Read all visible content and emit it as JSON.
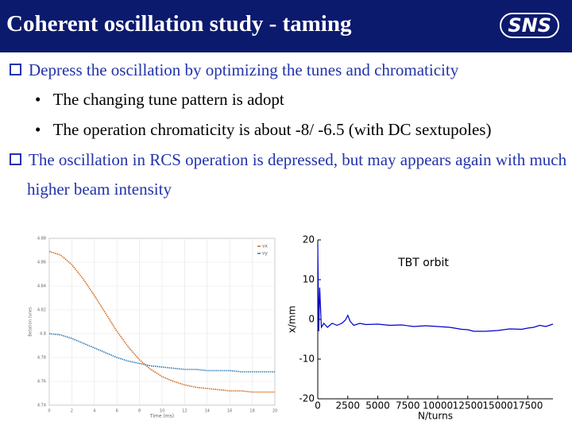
{
  "header": {
    "title": "Coherent oscillation study - taming",
    "logo": "SNS"
  },
  "bullets": [
    {
      "text": "Depress the oscillation by optimizing the tunes and chromaticity",
      "sub": [
        "The changing tune pattern is adopt",
        "The operation chromaticity is about -8/ -6.5 (with DC sextupoles)"
      ]
    },
    {
      "text": "The oscillation in RCS operation is depressed, but may appears again with much higher beam intensity",
      "sub": []
    }
  ],
  "chart_data": [
    {
      "type": "line",
      "xlabel": "Time (ms)",
      "ylabel": "Betatron tunes",
      "x": [
        0,
        1,
        2,
        3,
        4,
        5,
        6,
        7,
        8,
        9,
        10,
        11,
        12,
        13,
        14,
        15,
        16,
        17,
        18,
        19,
        20
      ],
      "series": [
        {
          "name": "νx",
          "color": "#d2691e",
          "values": [
            4.869,
            4.866,
            4.858,
            4.846,
            4.832,
            4.817,
            4.802,
            4.789,
            4.778,
            4.77,
            4.764,
            4.76,
            4.757,
            4.755,
            4.754,
            4.753,
            4.752,
            4.752,
            4.751,
            4.751,
            4.751
          ]
        },
        {
          "name": "νy",
          "color": "#2a7ab0",
          "values": [
            4.8,
            4.799,
            4.796,
            4.792,
            4.788,
            4.784,
            4.78,
            4.777,
            4.775,
            4.773,
            4.772,
            4.771,
            4.77,
            4.77,
            4.769,
            4.769,
            4.769,
            4.768,
            4.768,
            4.768,
            4.768
          ]
        }
      ],
      "xlim": [
        0,
        20
      ],
      "xticks": [
        0,
        2,
        4,
        6,
        8,
        10,
        12,
        14,
        16,
        18,
        20
      ],
      "ylim": [
        4.74,
        4.88
      ],
      "yticks": [
        4.74,
        4.76,
        4.78,
        4.8,
        4.82,
        4.84,
        4.86,
        4.88
      ],
      "grid": true,
      "legend": "upper right"
    },
    {
      "type": "line",
      "annotation": "TBT orbit",
      "xlabel": "N/turns",
      "ylabel": "x/mm",
      "x": [
        0,
        80,
        160,
        300,
        500,
        800,
        1200,
        1600,
        2000,
        2300,
        2500,
        2700,
        3000,
        3500,
        4000,
        5000,
        6000,
        7000,
        8000,
        9000,
        10000,
        11000,
        12000,
        12500,
        13000,
        14000,
        15000,
        16000,
        17000,
        17500,
        18000,
        18500,
        19000,
        19600
      ],
      "series": [
        {
          "name": "orbit",
          "color": "#0000cc",
          "values": [
            19,
            -3,
            8,
            -2,
            -1,
            -2,
            -1,
            -1.5,
            -1,
            -0.2,
            1,
            -0.5,
            -1.5,
            -1,
            -1.3,
            -1.2,
            -1.5,
            -1.4,
            -1.8,
            -1.6,
            -1.8,
            -2,
            -2.5,
            -2.6,
            -3,
            -3,
            -2.8,
            -2.4,
            -2.5,
            -2.2,
            -2,
            -1.5,
            -1.8,
            -1.2
          ]
        }
      ],
      "xlim": [
        0,
        19600
      ],
      "xticks": [
        0,
        2500,
        5000,
        7500,
        10000,
        12500,
        15000,
        17500
      ],
      "ylim": [
        -20,
        20
      ],
      "yticks": [
        -20,
        -10,
        0,
        10,
        20
      ],
      "grid": false
    }
  ]
}
